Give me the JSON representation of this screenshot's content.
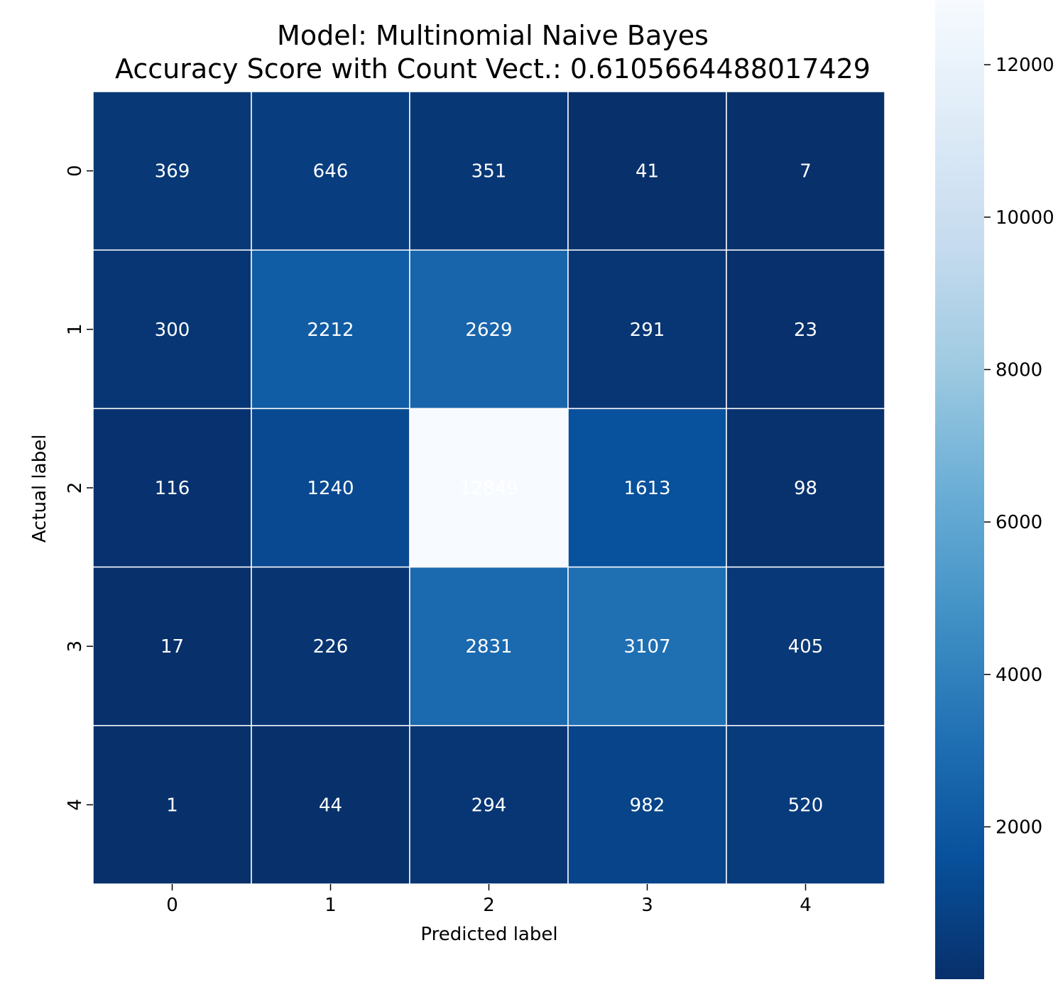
{
  "chart_data": {
    "type": "heatmap",
    "title_line1": "Model: Multinomial Naive Bayes",
    "title_line2": "Accuracy Score with Count Vect.: 0.6105664488017429",
    "xlabel": "Predicted label",
    "ylabel": "Actual label",
    "x_categories": [
      "0",
      "1",
      "2",
      "3",
      "4"
    ],
    "y_categories": [
      "0",
      "1",
      "2",
      "3",
      "4"
    ],
    "matrix": [
      [
        369,
        646,
        351,
        41,
        7
      ],
      [
        300,
        2212,
        2629,
        291,
        23
      ],
      [
        116,
        1240,
        12849,
        1613,
        98
      ],
      [
        17,
        226,
        2831,
        3107,
        405
      ],
      [
        1,
        44,
        294,
        982,
        520
      ]
    ],
    "colormap": "Blues_r",
    "colorbar": {
      "min": 1,
      "max": 12849,
      "ticks": [
        2000,
        4000,
        6000,
        8000,
        10000,
        12000
      ],
      "tick_labels": [
        "2000",
        "4000",
        "6000",
        "8000",
        "10000",
        "12000"
      ]
    },
    "colors": {
      "low": "#08306b",
      "high": "#f7fbff",
      "cell_text": "#ffffff",
      "grid_line": "#ffffff"
    }
  }
}
